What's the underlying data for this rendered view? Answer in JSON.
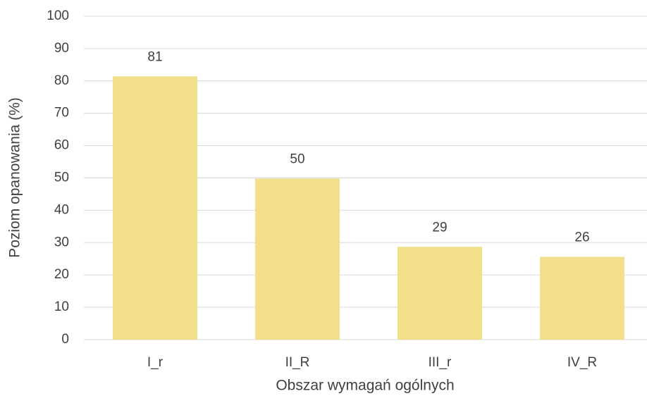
{
  "chart_data": {
    "type": "bar",
    "x_label": "Obszar wymagań ogólnych",
    "y_label": "Poziom opanowania (%)",
    "categories": [
      "I_r",
      "II_R",
      "III_r",
      "IV_R"
    ],
    "values": [
      81.4,
      49.8,
      28.7,
      25.6
    ],
    "value_labels": [
      "81",
      "50",
      "29",
      "26"
    ],
    "color": "#f2df8a",
    "ylim": [
      0,
      100
    ],
    "yticks": [
      0,
      10,
      20,
      30,
      40,
      50,
      60,
      70,
      80,
      90,
      100
    ],
    "grid": true
  }
}
